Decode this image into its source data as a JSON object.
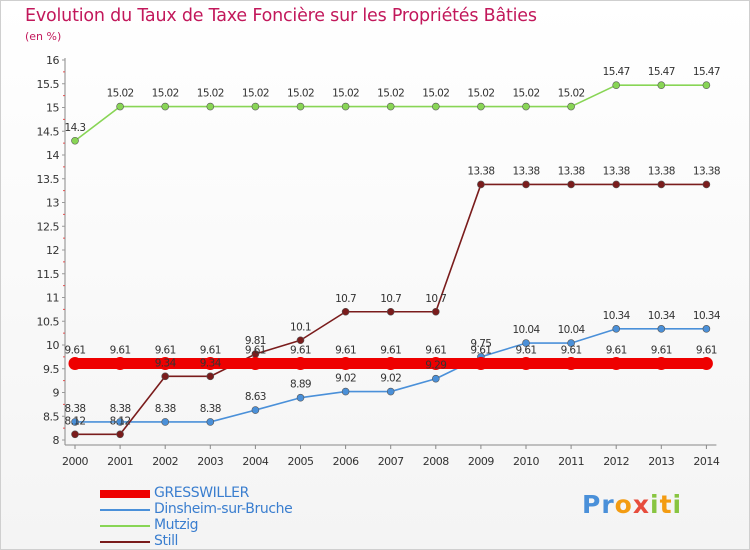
{
  "chart_data": {
    "type": "line",
    "title": "Evolution du Taux de Taxe Foncière sur les Propriétés Bâties",
    "subtitle": "(en %)",
    "xlabel": "",
    "ylabel": "",
    "categories": [
      "2000",
      "2001",
      "2002",
      "2003",
      "2004",
      "2005",
      "2006",
      "2007",
      "2008",
      "2009",
      "2010",
      "2011",
      "2012",
      "2013",
      "2014"
    ],
    "ylim": [
      8,
      16
    ],
    "yticks": [
      "8",
      "8.5",
      "9",
      "9.5",
      "10",
      "10.5",
      "11",
      "11.5",
      "12",
      "12.5",
      "13",
      "13.5",
      "14",
      "14.5",
      "15",
      "15.5",
      "16"
    ],
    "grid": false,
    "legend_position": "bottom-left",
    "series": [
      {
        "name": "GRESSWILLER",
        "color": "#ee0000",
        "values": [
          9.61,
          9.61,
          9.61,
          9.61,
          9.61,
          9.61,
          9.61,
          9.61,
          9.61,
          9.61,
          9.61,
          9.61,
          9.61,
          9.61,
          9.61
        ],
        "labels": [
          "9.61",
          "9.61",
          "9.61",
          "9.61",
          "9.61",
          "9.61",
          "9.61",
          "9.61",
          "9.61",
          "9.61",
          "9.61",
          "9.61",
          "9.61",
          "9.61",
          "9.61"
        ]
      },
      {
        "name": "Dinsheim-sur-Bruche",
        "color": "#4a90d9",
        "values": [
          8.38,
          8.38,
          8.38,
          8.38,
          8.63,
          8.89,
          9.02,
          9.02,
          9.29,
          9.75,
          10.04,
          10.04,
          10.34,
          10.34,
          10.34
        ],
        "labels": [
          "8.38",
          "8.38",
          "8.38",
          "8.38",
          "8.63",
          "8.89",
          "9.02",
          "9.02",
          "9.29",
          "9.75",
          "10.04",
          "10.04",
          "10.34",
          "10.34",
          "10.34"
        ]
      },
      {
        "name": "Mutzig",
        "color": "#88d555",
        "values": [
          14.3,
          15.02,
          15.02,
          15.02,
          15.02,
          15.02,
          15.02,
          15.02,
          15.02,
          15.02,
          15.02,
          15.02,
          15.47,
          15.47,
          15.47
        ],
        "labels": [
          "14.3",
          "15.02",
          "15.02",
          "15.02",
          "15.02",
          "15.02",
          "15.02",
          "15.02",
          "15.02",
          "15.02",
          "15.02",
          "15.02",
          "15.47",
          "15.47",
          "15.47"
        ]
      },
      {
        "name": "Still",
        "color": "#7a1c1c",
        "values": [
          8.12,
          8.12,
          9.34,
          9.34,
          9.81,
          10.1,
          10.7,
          10.7,
          10.7,
          13.38,
          13.38,
          13.38,
          13.38,
          13.38,
          13.38
        ],
        "labels": [
          "8.12",
          "8.12",
          "9.34",
          "9.34",
          "9.81",
          "10.1",
          "10.7",
          "10.7",
          "10.7",
          "13.38",
          "13.38",
          "13.38",
          "13.38",
          "13.38",
          "13.38"
        ]
      }
    ]
  },
  "logo": {
    "text": "Proxiti",
    "colors": [
      "#4a90d9",
      "#88c541",
      "#f39c12",
      "#e74c3c"
    ]
  }
}
